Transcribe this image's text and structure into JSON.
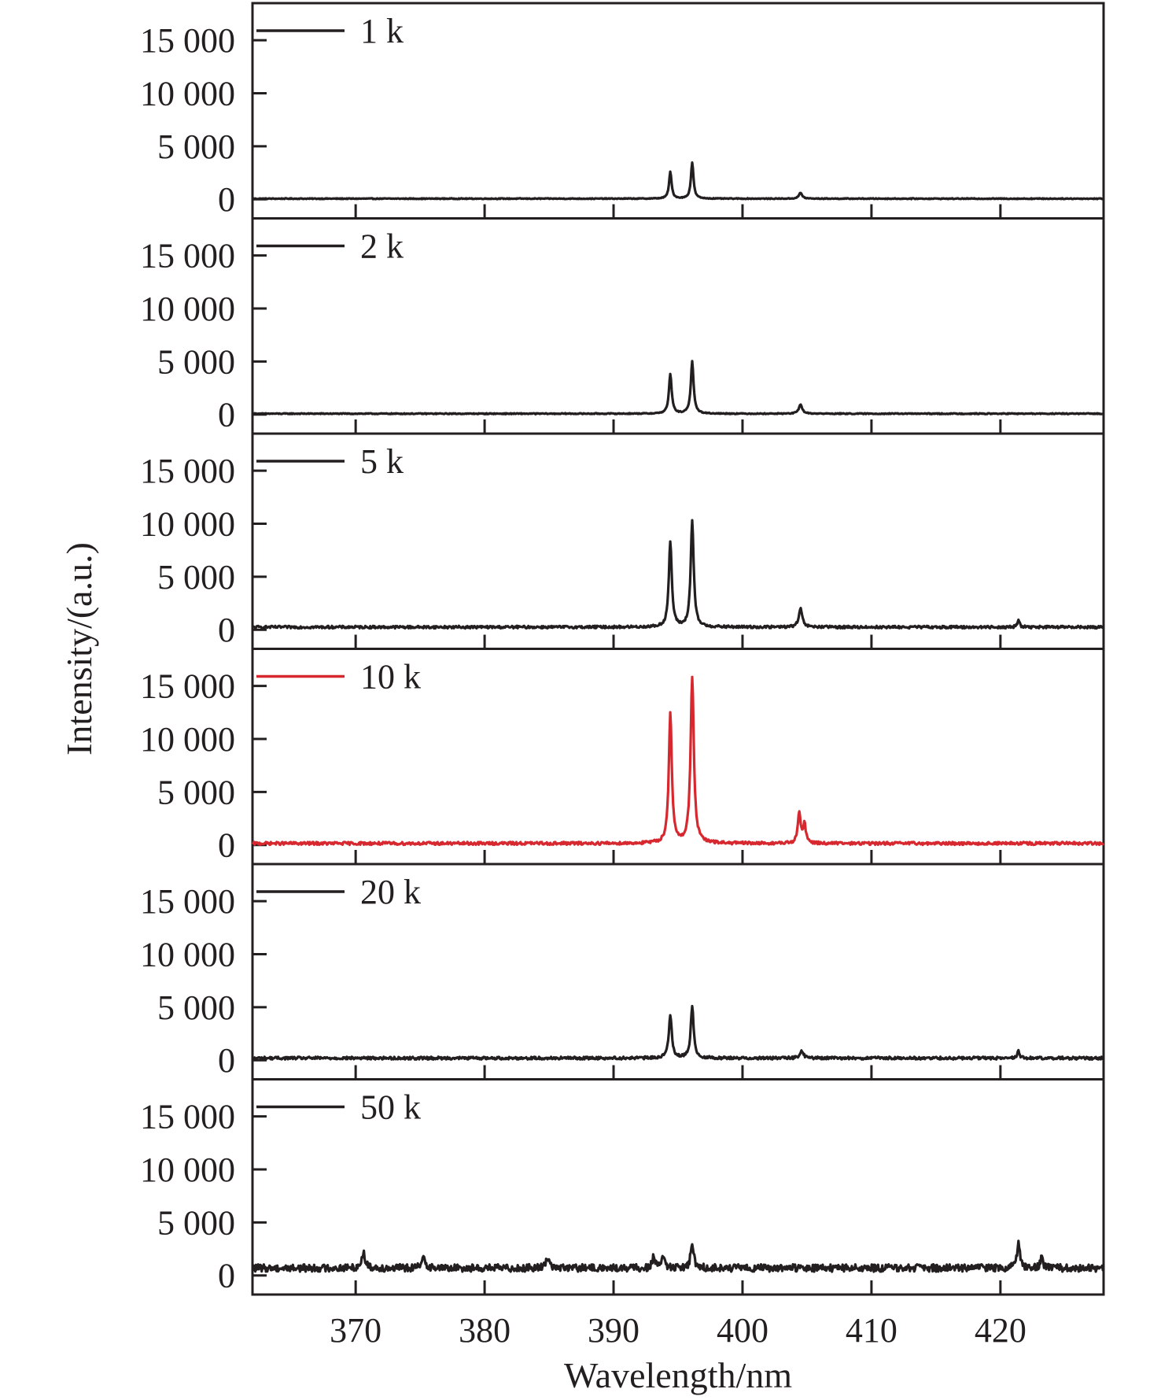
{
  "chart_data": {
    "type": "line",
    "layout": "stacked-panels",
    "xlabel": "Wavelength/nm",
    "ylabel": "Intensity/(a.u.)",
    "xlim": [
      362,
      428
    ],
    "ylim": [
      -1800,
      18500
    ],
    "x_ticks": [
      370,
      380,
      390,
      400,
      410,
      420
    ],
    "y_ticks": [
      0,
      5000,
      10000,
      15000
    ],
    "y_tick_labels": [
      "0",
      "5 000",
      "10 000",
      "15 000"
    ],
    "grid": false,
    "legend_position": "top-left",
    "highlight_color": "#d7282f",
    "default_color": "#231f20",
    "panels": [
      {
        "legend": "1 k",
        "color": "#231f20",
        "baseline": 60,
        "noise": 40,
        "peaks": [
          {
            "x": 394.4,
            "y": 2500,
            "width": 0.12
          },
          {
            "x": 396.1,
            "y": 3400,
            "width": 0.12
          },
          {
            "x": 404.5,
            "y": 550,
            "width": 0.15
          }
        ]
      },
      {
        "legend": "2 k",
        "color": "#231f20",
        "baseline": 80,
        "noise": 45,
        "peaks": [
          {
            "x": 394.4,
            "y": 3700,
            "width": 0.13
          },
          {
            "x": 396.1,
            "y": 4900,
            "width": 0.13
          },
          {
            "x": 404.5,
            "y": 850,
            "width": 0.16
          }
        ]
      },
      {
        "legend": "5 k",
        "color": "#231f20",
        "baseline": 250,
        "noise": 120,
        "peaks": [
          {
            "x": 394.4,
            "y": 8000,
            "width": 0.14
          },
          {
            "x": 396.1,
            "y": 10000,
            "width": 0.14
          },
          {
            "x": 404.5,
            "y": 1700,
            "width": 0.16
          },
          {
            "x": 421.4,
            "y": 700,
            "width": 0.1
          }
        ]
      },
      {
        "legend": "10 k",
        "color": "#d7282f",
        "baseline": 150,
        "noise": 140,
        "peaks": [
          {
            "x": 394.4,
            "y": 12300,
            "width": 0.14
          },
          {
            "x": 396.1,
            "y": 15700,
            "width": 0.15
          },
          {
            "x": 404.4,
            "y": 2800,
            "width": 0.13
          },
          {
            "x": 404.8,
            "y": 1800,
            "width": 0.13
          }
        ]
      },
      {
        "legend": "20 k",
        "color": "#231f20",
        "baseline": 200,
        "noise": 130,
        "peaks": [
          {
            "x": 394.4,
            "y": 4100,
            "width": 0.14
          },
          {
            "x": 396.1,
            "y": 4800,
            "width": 0.14
          },
          {
            "x": 404.6,
            "y": 700,
            "width": 0.15
          },
          {
            "x": 421.4,
            "y": 700,
            "width": 0.1
          }
        ]
      },
      {
        "legend": "50 k",
        "color": "#231f20",
        "baseline": 700,
        "noise": 350,
        "peaks": [
          {
            "x": 370.6,
            "y": 1500,
            "width": 0.15
          },
          {
            "x": 375.3,
            "y": 1100,
            "width": 0.15
          },
          {
            "x": 384.9,
            "y": 1100,
            "width": 0.15
          },
          {
            "x": 393.1,
            "y": 1000,
            "width": 0.12
          },
          {
            "x": 393.8,
            "y": 1300,
            "width": 0.12
          },
          {
            "x": 396.1,
            "y": 2300,
            "width": 0.14
          },
          {
            "x": 421.4,
            "y": 2700,
            "width": 0.12
          },
          {
            "x": 423.2,
            "y": 900,
            "width": 0.12
          }
        ]
      }
    ]
  }
}
